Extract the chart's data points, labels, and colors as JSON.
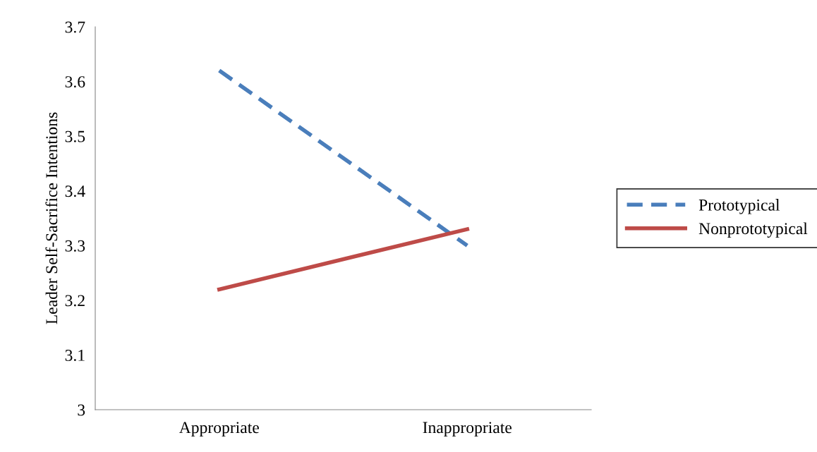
{
  "chart_data": {
    "type": "line",
    "ylabel": "Leader Self-Sacrifice Intentions",
    "categories": [
      "Appropriate",
      "Inappropriate"
    ],
    "series": [
      {
        "name": "Prototypical",
        "color": "#4a7ebb",
        "values": [
          3.62,
          3.3
        ],
        "line_style": "dashed"
      },
      {
        "name": "Nonprototypical",
        "color": "#be4b48",
        "values": [
          3.22,
          3.33
        ],
        "line_style": "solid"
      }
    ],
    "ylim": [
      3,
      3.7
    ],
    "yticks": [
      3,
      3.1,
      3.2,
      3.3,
      3.4,
      3.5,
      3.6,
      3.7
    ],
    "grid": false,
    "legend": "right",
    "marker": "none"
  }
}
